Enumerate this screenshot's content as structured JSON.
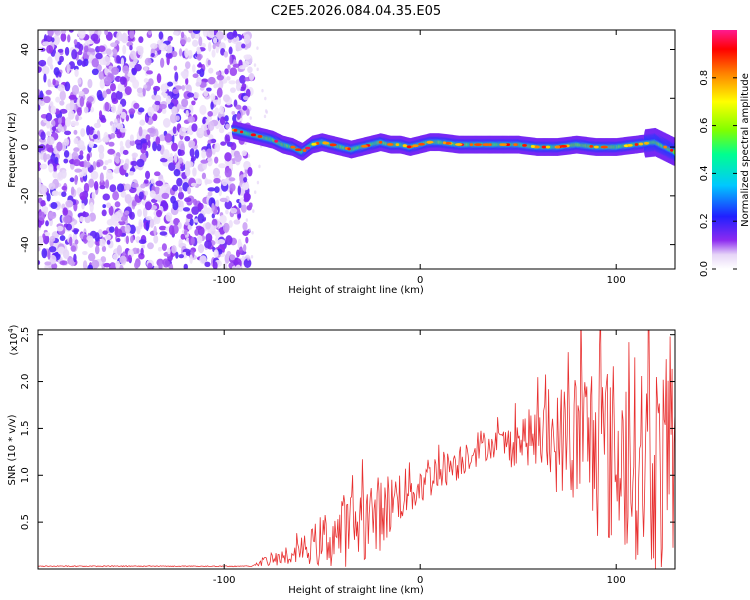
{
  "title": "C2E5.2026.084.04.35.E05",
  "chart_data": [
    {
      "type": "heatmap",
      "title": "C2E5.2026.084.04.35.E05",
      "xlabel": "Height of straight line (km)",
      "ylabel": "Frequency (Hz)",
      "xlim": [
        -195,
        130
      ],
      "ylim": [
        -50,
        48
      ],
      "xticks": [
        -100,
        0,
        100
      ],
      "xtick_labels": [
        "-100",
        "0",
        "100"
      ],
      "yticks": [
        -40,
        -20,
        0,
        20,
        40
      ],
      "ytick_labels": [
        "-40",
        "-20",
        "0",
        "20",
        "40"
      ],
      "noise_region": {
        "x": [
          -195,
          -90
        ],
        "y": [
          -50,
          48
        ]
      },
      "signal_ridge": {
        "x": [
          -95,
          -90,
          -85,
          -80,
          -75,
          -70,
          -65,
          -60,
          -55,
          -50,
          -45,
          -40,
          -35,
          -30,
          -25,
          -20,
          -15,
          -10,
          -5,
          0,
          5,
          10,
          20,
          30,
          40,
          50,
          60,
          70,
          80,
          90,
          100,
          110,
          120,
          130
        ],
        "frequency": [
          7,
          6,
          5,
          4,
          3,
          1,
          0,
          -2,
          1,
          2,
          1,
          0,
          -1,
          0,
          1,
          2,
          1,
          1,
          0,
          1,
          2,
          2,
          1,
          1,
          1,
          1,
          0,
          0,
          1,
          0,
          0,
          1,
          2,
          -2
        ]
      },
      "colorbar": {
        "label": "Normalized spectral amplitude",
        "range": [
          0.0,
          1.0
        ],
        "ticks": [
          "0.0",
          "0.2",
          "0.4",
          "0.6",
          "0.8"
        ]
      }
    },
    {
      "type": "line",
      "xlabel": "Height of straight line (km)",
      "ylabel": "SNR (10 * v/v)",
      "scale_label": "(x10",
      "scale_exponent": "4",
      "scale_close": ")",
      "xlim": [
        -195,
        130
      ],
      "ylim": [
        0,
        2.55
      ],
      "xticks": [
        -100,
        0,
        100
      ],
      "xtick_labels": [
        "-100",
        "0",
        "100"
      ],
      "yticks": [
        0.5,
        1.0,
        1.5,
        2.0,
        2.5
      ],
      "ytick_labels": [
        "0.5",
        "1.0",
        "1.5",
        "2.0",
        "2.5"
      ],
      "series": [
        {
          "name": "SNR",
          "color": "#e83030",
          "x": [
            -195,
            -150,
            -100,
            -85,
            -80,
            -75,
            -70,
            -65,
            -60,
            -55,
            -50,
            -45,
            -40,
            -35,
            -30,
            -25,
            -20,
            -15,
            -10,
            -5,
            0,
            5,
            10,
            15,
            20,
            25,
            30,
            35,
            40,
            45,
            50,
            55,
            60,
            65,
            70,
            75,
            80,
            85,
            90,
            95,
            100,
            105,
            110,
            115,
            120,
            125,
            130
          ],
          "values": [
            0.03,
            0.03,
            0.03,
            0.04,
            0.08,
            0.1,
            0.12,
            0.15,
            0.2,
            0.25,
            0.3,
            0.35,
            0.4,
            0.45,
            0.5,
            0.55,
            0.6,
            0.7,
            0.8,
            0.85,
            0.9,
            1.0,
            1.05,
            1.1,
            1.15,
            1.25,
            1.3,
            1.32,
            1.35,
            1.3,
            1.38,
            1.4,
            1.4,
            1.35,
            1.35,
            1.42,
            1.38,
            1.4,
            1.3,
            1.25,
            1.2,
            1.2,
            1.2,
            1.15,
            1.1,
            1.05,
            1.1
          ],
          "noise": [
            0,
            0,
            0,
            0,
            0.05,
            0.08,
            0.1,
            0.12,
            0.15,
            0.2,
            0.3,
            0.35,
            0.4,
            0.4,
            0.4,
            0.45,
            0.4,
            0.35,
            0.3,
            0.3,
            0.25,
            0.25,
            0.2,
            0.2,
            0.2,
            0.2,
            0.2,
            0.15,
            0.15,
            0.25,
            0.25,
            0.3,
            0.35,
            0.45,
            0.55,
            0.7,
            0.8,
            0.9,
            1.0,
            1.0,
            1.05,
            1.05,
            1.1,
            1.15,
            1.2,
            1.2,
            1.2
          ]
        }
      ]
    }
  ]
}
